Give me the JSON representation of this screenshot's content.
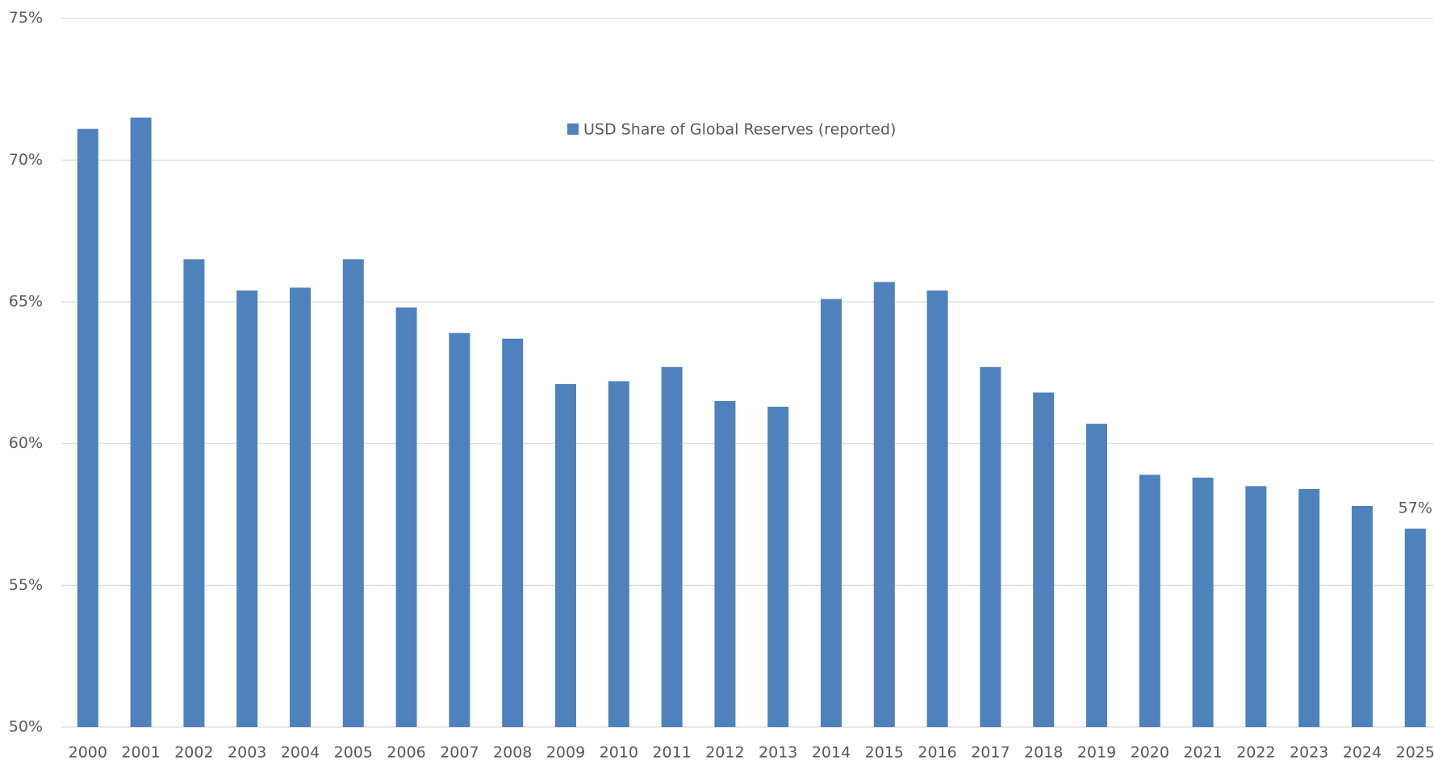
{
  "chart_data": {
    "type": "bar",
    "legend": "USD Share of Global Reserves (reported)",
    "categories": [
      "2000",
      "2001",
      "2002",
      "2003",
      "2004",
      "2005",
      "2006",
      "2007",
      "2008",
      "2009",
      "2010",
      "2011",
      "2012",
      "2013",
      "2014",
      "2015",
      "2016",
      "2017",
      "2018",
      "2019",
      "2020",
      "2021",
      "2022",
      "2023",
      "2024",
      "2025"
    ],
    "values": [
      71.1,
      71.5,
      66.5,
      65.4,
      65.5,
      66.5,
      64.8,
      63.9,
      63.7,
      62.1,
      62.2,
      62.7,
      61.5,
      61.3,
      65.1,
      65.7,
      65.4,
      62.7,
      61.8,
      60.7,
      58.9,
      58.8,
      58.5,
      58.4,
      57.8,
      57
    ],
    "value_labels": [
      null,
      null,
      null,
      null,
      null,
      null,
      null,
      null,
      null,
      null,
      null,
      null,
      null,
      null,
      null,
      null,
      null,
      null,
      null,
      null,
      null,
      null,
      null,
      null,
      null,
      "57%"
    ],
    "color": "#4f81bd",
    "ylim": [
      50,
      75
    ],
    "yticks": [
      {
        "value": 50,
        "label": "50%"
      },
      {
        "value": 55,
        "label": "55%"
      },
      {
        "value": 60,
        "label": "60%"
      },
      {
        "value": 65,
        "label": "65%"
      },
      {
        "value": 70,
        "label": "70%"
      },
      {
        "value": 75,
        "label": "75%"
      }
    ],
    "grid": true
  }
}
